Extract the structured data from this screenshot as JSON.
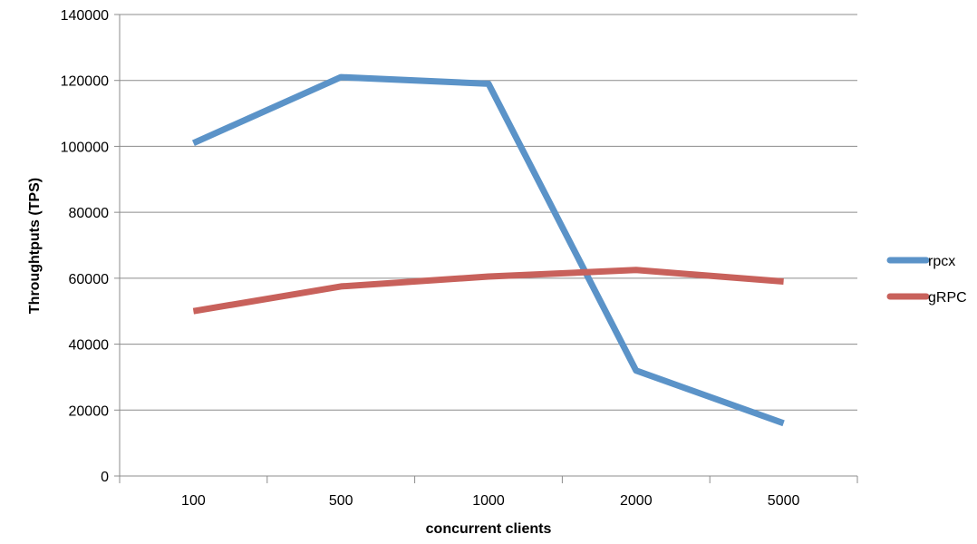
{
  "chart_data": {
    "type": "line",
    "title": "",
    "xlabel": "concurrent clients",
    "ylabel": "Throughtputs (TPS)",
    "categories": [
      "100",
      "500",
      "1000",
      "2000",
      "5000"
    ],
    "ylim": [
      0,
      140000
    ],
    "yticks": [
      0,
      20000,
      40000,
      60000,
      80000,
      100000,
      120000,
      140000
    ],
    "grid": "horizontal",
    "legend_position": "right",
    "series": [
      {
        "name": "rpcx",
        "color": "#5b93c8",
        "values": [
          101000,
          121000,
          119000,
          32000,
          16000
        ]
      },
      {
        "name": "gRPC",
        "color": "#c8615b",
        "values": [
          50000,
          57500,
          60500,
          62500,
          59000
        ]
      }
    ]
  }
}
